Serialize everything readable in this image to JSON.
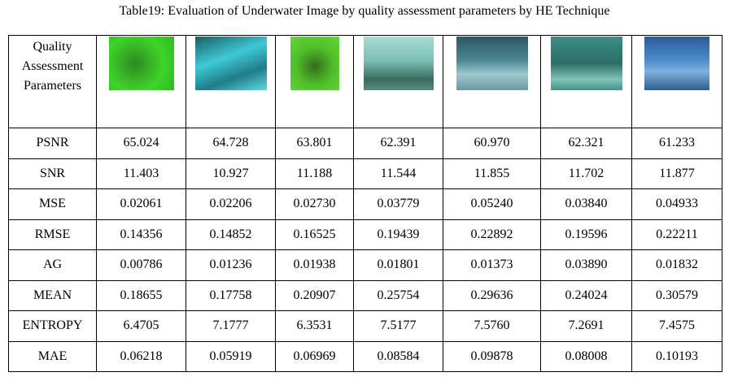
{
  "title": "Table19: Evaluation of Underwater Image by quality assessment parameters by HE Technique",
  "table": {
    "header": "Quality Assessment Parameters",
    "rows": [
      [
        "PSNR",
        "65.024",
        "64.728",
        "63.801",
        "62.391",
        "60.970",
        "62.321",
        "61.233"
      ],
      [
        "SNR",
        "11.403",
        "10.927",
        "11.188",
        "11.544",
        "11.855",
        "11.702",
        "11.877"
      ],
      [
        "MSE",
        "0.02061",
        "0.02206",
        "0.02730",
        "0.03779",
        "0.05240",
        "0.03840",
        "0.04933"
      ],
      [
        "RMSE",
        "0.14356",
        "0.14852",
        "0.16525",
        "0.19439",
        "0.22892",
        "0.19596",
        "0.22211"
      ],
      [
        "AG",
        "0.00786",
        "0.01236",
        "0.01938",
        "0.01801",
        "0.01373",
        "0.03890",
        "0.01832"
      ],
      [
        "MEAN",
        "0.18655",
        "0.17758",
        "0.20907",
        "0.25754",
        "0.29636",
        "0.24024",
        "0.30579"
      ],
      [
        "ENTROPY",
        "6.4705",
        "7.1777",
        "6.3531",
        "7.5177",
        "7.5760",
        "7.2691",
        "7.4575"
      ],
      [
        "MAE",
        "0.06218",
        "0.05919",
        "0.06969",
        "0.08584",
        "0.09878",
        "0.08008",
        "0.10193"
      ]
    ]
  }
}
